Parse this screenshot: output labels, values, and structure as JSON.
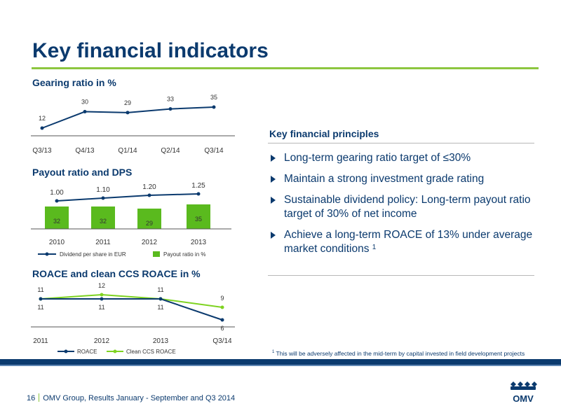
{
  "title": "Key financial indicators",
  "colors": {
    "navy": "#0b3a6e",
    "green": "#8cc63f",
    "bar_green": "#5aba1e",
    "light_green": "#7ed321"
  },
  "chart_data": [
    {
      "type": "line",
      "title": "Gearing ratio in %",
      "categories": [
        "Q3/13",
        "Q4/13",
        "Q1/14",
        "Q2/14",
        "Q3/14"
      ],
      "series": [
        {
          "values": [
            12,
            30,
            29,
            33,
            35
          ]
        }
      ],
      "ylim": [
        0,
        40
      ],
      "grid": false
    },
    {
      "type": "bar",
      "title": "Payout ratio and DPS",
      "categories": [
        "2010",
        "2011",
        "2012",
        "2013"
      ],
      "series": [
        {
          "name": "Payout ratio in %",
          "type": "bar",
          "values": [
            32,
            32,
            29,
            35
          ]
        },
        {
          "name": "Dividend per share in EUR",
          "type": "line",
          "values": [
            1.0,
            1.1,
            1.2,
            1.25
          ],
          "labels": [
            "1.00",
            "1.10",
            "1.20",
            "1.25"
          ]
        }
      ],
      "legend": "bottom"
    },
    {
      "type": "line",
      "title": "ROACE and clean CCS ROACE in %",
      "categories": [
        "2011",
        "2012",
        "2013",
        "Q3/14"
      ],
      "series": [
        {
          "name": "ROACE",
          "values": [
            11,
            11,
            11,
            6
          ]
        },
        {
          "name": "Clean CCS ROACE",
          "values": [
            11,
            12,
            11,
            9
          ]
        }
      ],
      "ylim": [
        0,
        14
      ],
      "legend": "bottom"
    }
  ],
  "principles": {
    "title": "Key financial principles",
    "items": [
      {
        "text": "Long-term gearing ratio target of ≤30%",
        "sup": ""
      },
      {
        "text": "Maintain a strong investment grade rating",
        "sup": ""
      },
      {
        "text": "Sustainable dividend policy: Long-term payout ratio target of 30% of net income",
        "sup": ""
      },
      {
        "text": "Achieve a long-term ROACE of 13% under average market conditions ",
        "sup": "1"
      }
    ]
  },
  "footnote": {
    "marker": "1",
    "text": " This will be adversely affected in the mid-term by capital invested in field development projects"
  },
  "footer": {
    "page": "16",
    "text": "OMV Group, Results January - September and Q3 2014"
  },
  "logo": {
    "text": "OMV"
  }
}
